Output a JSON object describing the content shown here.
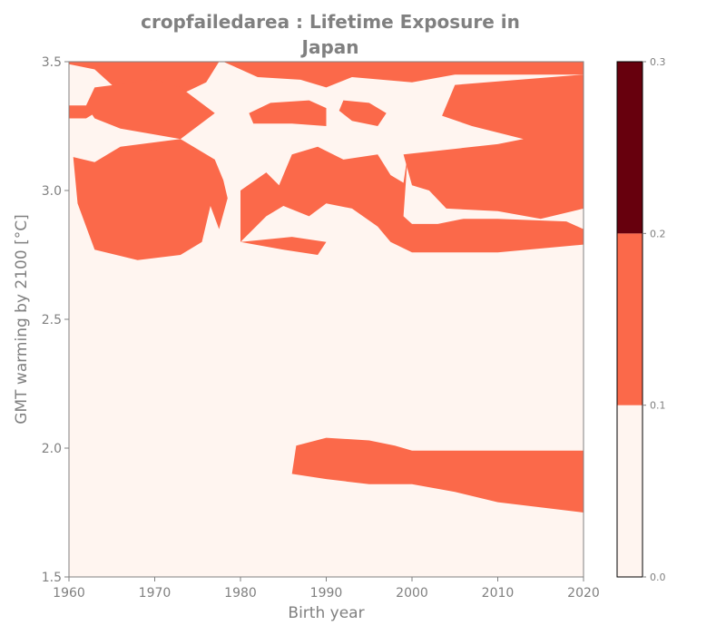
{
  "chart_data": {
    "type": "heatmap",
    "title_lines": [
      "cropfailedarea : Lifetime Exposure in",
      "Japan"
    ],
    "xlabel": "Birth year",
    "ylabel": "GMT warming by 2100 [°C]",
    "xlim": [
      1960,
      2020
    ],
    "ylim": [
      1.5,
      3.5
    ],
    "x_ticks": [
      1960,
      1970,
      1980,
      1990,
      2000,
      2010,
      2020
    ],
    "y_ticks": [
      1.5,
      2.0,
      2.5,
      3.0,
      3.5
    ],
    "y_tick_labels": [
      "1.5",
      "2.0",
      "2.5",
      "3.0",
      "3.5"
    ],
    "colorbar": {
      "levels": [
        0.0,
        0.1,
        0.2,
        0.3
      ],
      "tick_labels": [
        "0.0",
        "0.1",
        "0.2",
        "0.3"
      ],
      "colors": [
        "#fff5f0",
        "#fb694a",
        "#67000d"
      ]
    },
    "regions": [
      {
        "level": "0.1-0.2",
        "polygon": [
          [
            1960,
            3.5
          ],
          [
            1977.5,
            3.5
          ],
          [
            1976,
            3.42
          ],
          [
            1971,
            3.34
          ],
          [
            1966,
            3.38
          ],
          [
            1963,
            3.47
          ],
          [
            1960,
            3.49
          ]
        ]
      },
      {
        "level": "0.1-0.2",
        "polygon": [
          [
            1960,
            3.33
          ],
          [
            1962,
            3.33
          ],
          [
            1963,
            3.3
          ],
          [
            1962,
            3.28
          ],
          [
            1960,
            3.28
          ]
        ]
      },
      {
        "level": "0.1-0.2",
        "polygon": [
          [
            1963,
            3.4
          ],
          [
            1970,
            3.43
          ],
          [
            1973,
            3.4
          ],
          [
            1977,
            3.3
          ],
          [
            1973,
            3.2
          ],
          [
            1966,
            3.24
          ],
          [
            1963,
            3.28
          ],
          [
            1962,
            3.33
          ]
        ]
      },
      {
        "level": "0.1-0.2",
        "polygon": [
          [
            1981,
            3.3
          ],
          [
            1983.5,
            3.34
          ],
          [
            1988,
            3.35
          ],
          [
            1990,
            3.32
          ],
          [
            1990,
            3.25
          ],
          [
            1986,
            3.26
          ],
          [
            1981.5,
            3.26
          ]
        ]
      },
      {
        "level": "0.1-0.2",
        "polygon": [
          [
            1992,
            3.35
          ],
          [
            1995,
            3.34
          ],
          [
            1997,
            3.3
          ],
          [
            1996,
            3.25
          ],
          [
            1993,
            3.27
          ],
          [
            1991.5,
            3.31
          ]
        ]
      },
      {
        "level": "0.1-0.2",
        "polygon": [
          [
            1978,
            3.5
          ],
          [
            2020,
            3.5
          ],
          [
            2020,
            3.45
          ],
          [
            2005,
            3.45
          ],
          [
            2000,
            3.42
          ],
          [
            1993,
            3.44
          ],
          [
            1990,
            3.4
          ],
          [
            1987,
            3.43
          ],
          [
            1982,
            3.44
          ]
        ]
      },
      {
        "level": "0.1-0.2",
        "polygon": [
          [
            2005,
            3.41
          ],
          [
            2020,
            3.45
          ],
          [
            2020,
            2.93
          ],
          [
            2015,
            2.89
          ],
          [
            2010,
            2.92
          ],
          [
            2004,
            2.93
          ],
          [
            2002,
            3.0
          ],
          [
            2000,
            3.02
          ],
          [
            1999,
            3.14
          ],
          [
            2010,
            3.18
          ],
          [
            2013,
            3.2
          ],
          [
            2007,
            3.25
          ],
          [
            2003.5,
            3.29
          ]
        ]
      },
      {
        "level": "0.1-0.2",
        "polygon": [
          [
            1960.5,
            3.13
          ],
          [
            1963,
            3.11
          ],
          [
            1966,
            3.17
          ],
          [
            1973,
            3.2
          ],
          [
            1977,
            3.12
          ],
          [
            1978,
            3.04
          ],
          [
            1978.5,
            2.97
          ],
          [
            1977.5,
            2.85
          ],
          [
            1976.5,
            2.94
          ],
          [
            1975.5,
            2.8
          ],
          [
            1973,
            2.75
          ],
          [
            1968,
            2.73
          ],
          [
            1963,
            2.77
          ],
          [
            1961,
            2.95
          ]
        ]
      },
      {
        "level": "0.1-0.2",
        "polygon": [
          [
            1980,
            3.0
          ],
          [
            1983,
            3.07
          ],
          [
            1984.5,
            3.02
          ],
          [
            1986,
            3.14
          ],
          [
            1989,
            3.17
          ],
          [
            1992,
            3.12
          ],
          [
            1996,
            3.14
          ],
          [
            1997.5,
            3.06
          ],
          [
            1999,
            3.03
          ],
          [
            1999.5,
            3.14
          ],
          [
            1999,
            2.9
          ],
          [
            2000,
            2.87
          ],
          [
            2003,
            2.87
          ],
          [
            2006,
            2.89
          ],
          [
            2010,
            2.89
          ],
          [
            2018,
            2.88
          ],
          [
            2020,
            2.85
          ],
          [
            2020,
            2.79
          ],
          [
            2010,
            2.76
          ],
          [
            2000,
            2.76
          ],
          [
            1997.5,
            2.8
          ],
          [
            1996,
            2.86
          ],
          [
            1993,
            2.93
          ],
          [
            1990,
            2.95
          ],
          [
            1988,
            2.9
          ],
          [
            1985,
            2.94
          ],
          [
            1983,
            2.9
          ],
          [
            1980,
            2.8
          ]
        ]
      },
      {
        "level": "0.1-0.2",
        "polygon": [
          [
            1980,
            2.8
          ],
          [
            1985,
            2.77
          ],
          [
            1989,
            2.75
          ],
          [
            1990,
            2.8
          ],
          [
            1986,
            2.82
          ]
        ]
      },
      {
        "level": "0.1-0.2",
        "polygon": [
          [
            1986.5,
            2.01
          ],
          [
            1990,
            2.04
          ],
          [
            1995,
            2.03
          ],
          [
            1998,
            2.01
          ],
          [
            2000,
            1.99
          ],
          [
            2010,
            1.99
          ],
          [
            2020,
            1.99
          ],
          [
            2020,
            1.75
          ],
          [
            2010,
            1.79
          ],
          [
            2005,
            1.83
          ],
          [
            2000,
            1.86
          ],
          [
            1995,
            1.86
          ],
          [
            1990,
            1.88
          ],
          [
            1986,
            1.9
          ]
        ]
      }
    ]
  }
}
